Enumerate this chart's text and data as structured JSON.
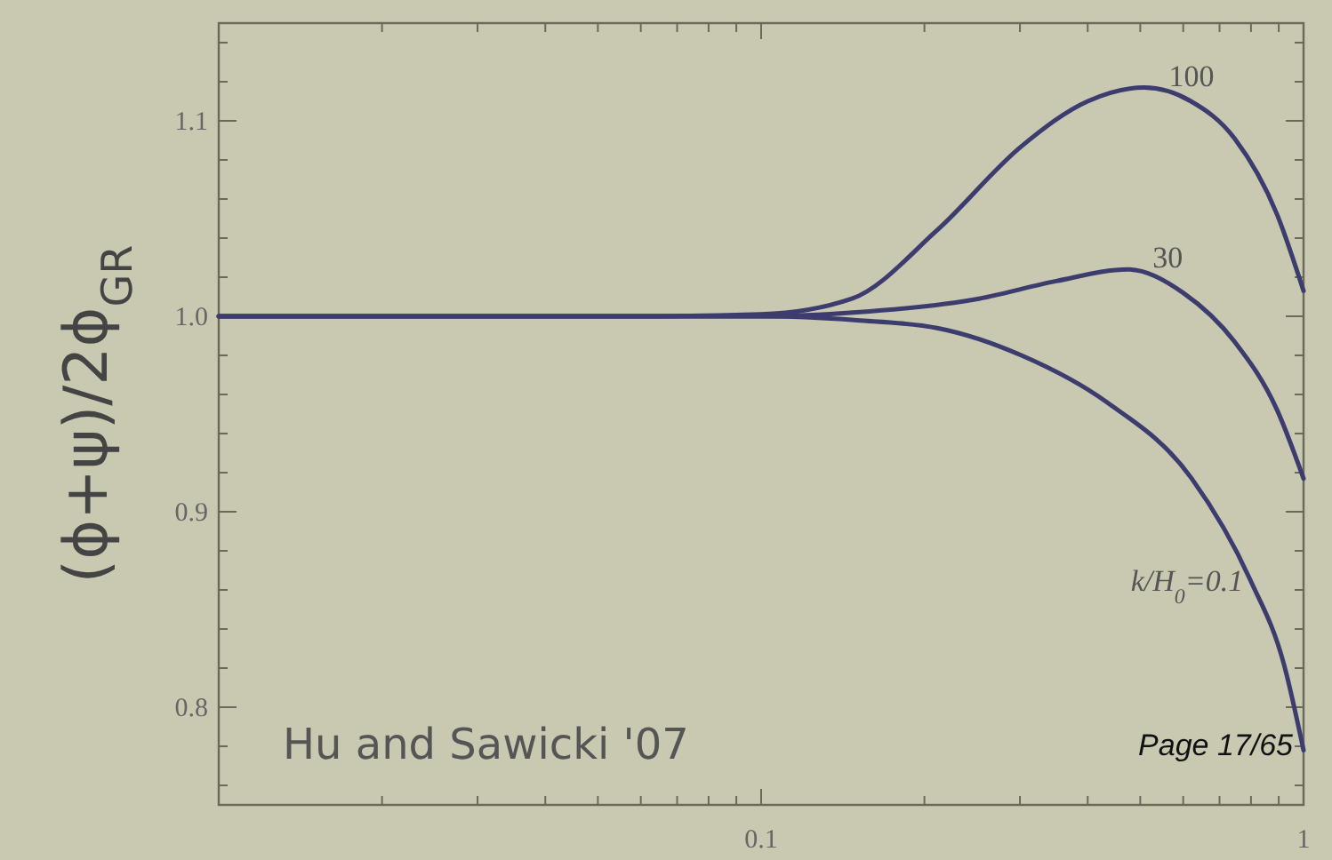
{
  "chart_data": {
    "type": "line",
    "ylabel": "(ϕ+ψ)/2ϕ$_{GR}$",
    "log": "x",
    "xlim": [
      0.01,
      1
    ],
    "ylim": [
      0.75,
      1.15
    ],
    "xticks": [
      {
        "value": 0.02,
        "label": null
      },
      {
        "value": 0.03,
        "label": null
      },
      {
        "value": 0.04,
        "label": null
      },
      {
        "value": 0.05,
        "label": null
      },
      {
        "value": 0.06,
        "label": null
      },
      {
        "value": 0.07,
        "label": null
      },
      {
        "value": 0.08,
        "label": null
      },
      {
        "value": 0.09,
        "label": null
      },
      0.1,
      {
        "value": 0.2,
        "label": null
      },
      {
        "value": 0.3,
        "label": null
      },
      {
        "value": 0.4,
        "label": null
      },
      {
        "value": 0.5,
        "label": null
      },
      {
        "value": 0.6,
        "label": null
      },
      {
        "value": 0.7,
        "label": null
      },
      {
        "value": 0.8,
        "label": null
      },
      {
        "value": 0.9,
        "label": null
      },
      1
    ],
    "yticks": [
      {
        "value": 0.76,
        "label": null
      },
      {
        "value": 0.78,
        "label": null
      },
      0.8,
      {
        "value": 0.82,
        "label": null
      },
      {
        "value": 0.84,
        "label": null
      },
      {
        "value": 0.86,
        "label": null
      },
      {
        "value": 0.88,
        "label": null
      },
      0.9,
      {
        "value": 0.92,
        "label": null
      },
      {
        "value": 0.94,
        "label": null
      },
      {
        "value": 0.96,
        "label": null
      },
      {
        "value": 0.98,
        "label": null
      },
      {
        "value": 1,
        "label": "1.0"
      },
      {
        "value": 1.02,
        "label": null
      },
      {
        "value": 1.04,
        "label": null
      },
      {
        "value": 1.06,
        "label": null
      },
      {
        "value": 1.08,
        "label": null
      },
      1.1,
      {
        "value": 1.12,
        "label": null
      },
      {
        "value": 1.14,
        "label": null
      }
    ],
    "marker": "none",
    "line_style": "solid",
    "series": [
      {
        "name": "100",
        "color": "#3c3c6e",
        "x": [
          0.01,
          0.03,
          0.06,
          0.1,
          0.147,
          0.211,
          0.302,
          0.4,
          0.508,
          0.62,
          0.746,
          0.894,
          1
        ],
        "values": [
          1,
          1,
          1,
          1.001,
          1.009,
          1.044,
          1.087,
          1.11,
          1.117,
          1.11,
          1.091,
          1.052,
          1.013
        ]
      },
      {
        "name": "30",
        "color": "#3c3c6e",
        "x": [
          0.01,
          0.03,
          0.06,
          0.1,
          0.15,
          0.252,
          0.35,
          0.474,
          0.6,
          0.746,
          0.894,
          1
        ],
        "values": [
          1,
          1,
          1,
          1,
          1.002,
          1.009,
          1.018,
          1.024,
          1.012,
          0.987,
          0.952,
          0.917
        ]
      },
      {
        "name": "k/H$_{0}$=0.1",
        "color": "#3c3c6e",
        "x": [
          0.01,
          0.03,
          0.06,
          0.1,
          0.15,
          0.211,
          0.302,
          0.434,
          0.622,
          0.798,
          0.92,
          1
        ],
        "values": [
          1,
          1,
          1,
          1,
          0.998,
          0.994,
          0.98,
          0.956,
          0.917,
          0.865,
          0.822,
          0.778
        ]
      }
    ],
    "annotations": [
      "Hu and Sawicki '07",
      "Page 17/65"
    ]
  }
}
